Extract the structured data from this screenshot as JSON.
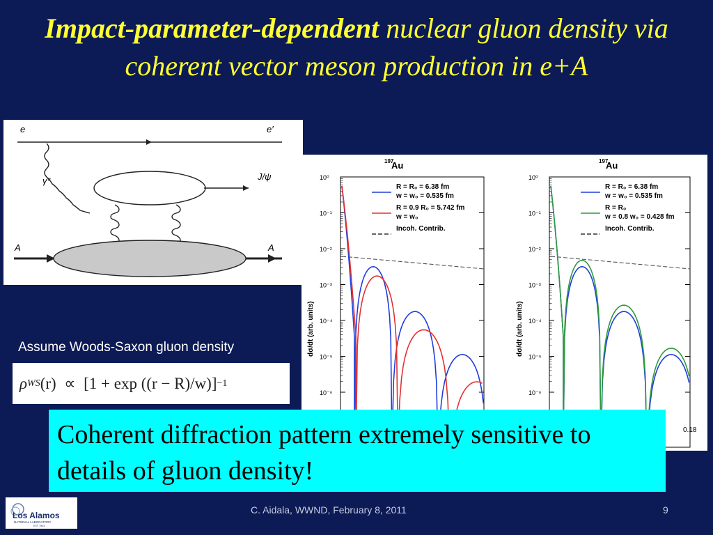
{
  "title": {
    "bold": "Impact-parameter-dependent",
    "rest": " nuclear gluon density via coherent vector meson production in e+A"
  },
  "diagram": {
    "e_in": "e",
    "e_out": "e′",
    "gamma": "γ*",
    "jpsi": "J/ψ",
    "a_in": "A",
    "a_out": "A"
  },
  "assume_text": "Assume Woods-Saxon gluon density",
  "formula": {
    "lhs": "ρ",
    "sub": "WS",
    "arg": "(r)",
    "prop": "∝",
    "rhs": "[1 + exp ((r − R)/w)]",
    "exp": "−1"
  },
  "callout_text": "Coherent diffraction pattern extremely sensitive to details of gluon density!",
  "footer": "C. Aidala, WWND, February 8, 2011",
  "page_number": "9",
  "logo": {
    "name": "Los Alamos",
    "sub": "NATIONAL LABORATORY",
    "est": "EST. 1943"
  },
  "chart_data": [
    {
      "type": "line",
      "title": "197Au",
      "ylabel": "dσ/dt (arb. units)",
      "yscale": "log",
      "ylim": [
        1e-07,
        1
      ],
      "y_ticks": [
        "10⁰",
        "10⁻¹",
        "10⁻²",
        "10⁻³",
        "10⁻⁴",
        "10⁻⁵",
        "10⁻⁶"
      ],
      "series": [
        {
          "name": "R = R0 = 6.38 fm, w = w0 = 0.535 fm",
          "color": "#1f3fdc",
          "minima": [
            0.012,
            0.03,
            0.048,
            0.067
          ],
          "peaks": [
            0.5,
            0.003,
            0.00018,
            1.8e-05
          ]
        },
        {
          "name": "R = 0.9 R0 = 5.742 fm, w = w0",
          "color": "#e23232",
          "minima": [
            0.013,
            0.034,
            0.054,
            0.075
          ],
          "peaks": [
            0.4,
            0.0028,
            7e-05,
            4.5e-06
          ]
        },
        {
          "name": "Incoh. Contrib.",
          "color": "#333333",
          "style": "dashed"
        }
      ],
      "legend": [
        {
          "line1": "R = R₀ = 6.38 fm",
          "line2": "w = w₀ = 0.535 fm",
          "color": "#1f3fdc"
        },
        {
          "line1": "R = 0.9 R₀ = 5.742 fm",
          "line2": "w = w₀",
          "color": "#e23232"
        },
        {
          "line1": "Incoh. Contrib.",
          "line2": "",
          "color": "#333333"
        }
      ]
    },
    {
      "type": "line",
      "title": "197Au",
      "ylabel": "dσ/dt (arb. units)",
      "yscale": "log",
      "ylim": [
        1e-07,
        1
      ],
      "x_tick_last": "0.18",
      "y_ticks": [
        "10⁰",
        "10⁻¹",
        "10⁻²",
        "10⁻³",
        "10⁻⁴",
        "10⁻⁵",
        "10⁻⁶"
      ],
      "series": [
        {
          "name": "R = R0 = 6.38 fm, w = w0 = 0.535 fm",
          "color": "#1f3fdc"
        },
        {
          "name": "R = R0, w = 0.8 w0 = 0.428 fm",
          "color": "#2f9a3f"
        },
        {
          "name": "Incoh. Contrib.",
          "color": "#333333",
          "style": "dashed"
        }
      ],
      "legend": [
        {
          "line1": "R = R₀ = 6.38 fm",
          "line2": "w = w₀ = 0.535 fm",
          "color": "#1f3fdc"
        },
        {
          "line1": "R = R₀",
          "line2": "w = 0.8 w₀ = 0.428 fm",
          "color": "#2f9a3f"
        },
        {
          "line1": "Incoh. Contrib.",
          "line2": "",
          "color": "#333333"
        }
      ]
    }
  ]
}
